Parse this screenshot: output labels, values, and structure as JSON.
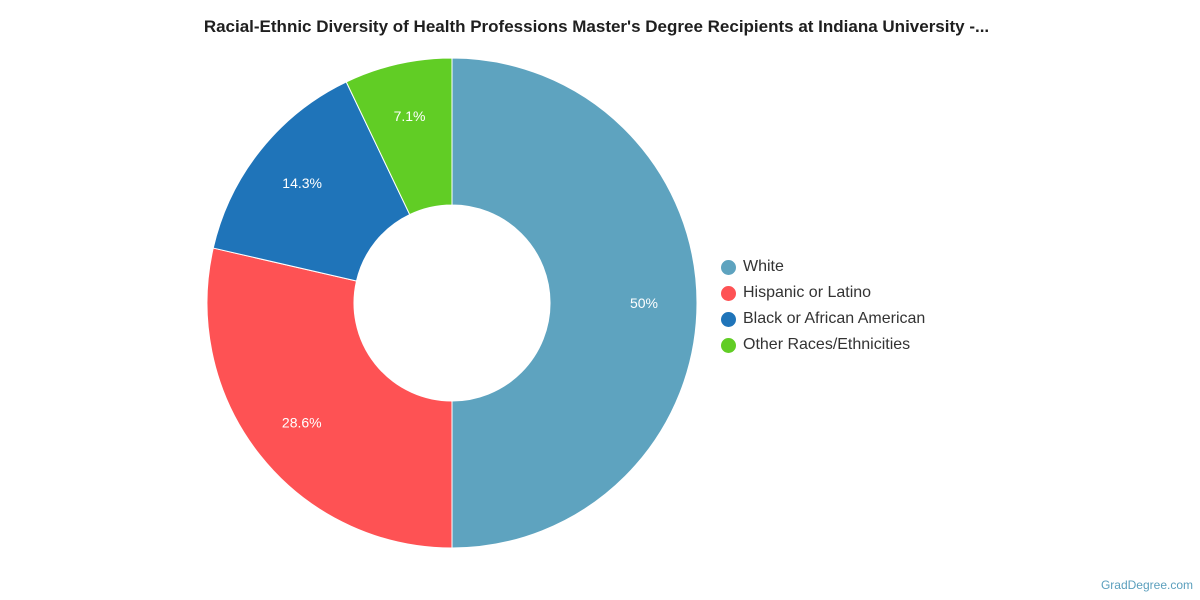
{
  "chart_data": {
    "type": "pie",
    "variant": "donut",
    "title": "Racial-Ethnic Diversity of Health Professions Master's Degree Recipients at Indiana University -...",
    "categories": [
      "White",
      "Hispanic or Latino",
      "Black or African American",
      "Other Races/Ethnicities"
    ],
    "values": [
      50,
      28.6,
      14.3,
      7.1
    ],
    "data_labels": [
      "50%",
      "28.6%",
      "14.3%",
      "7.1%"
    ],
    "colors": [
      "#5ea3bf",
      "#fe5254",
      "#1f74b9",
      "#61cd25"
    ],
    "legend_position": "right"
  },
  "watermark": "GradDegree.com"
}
